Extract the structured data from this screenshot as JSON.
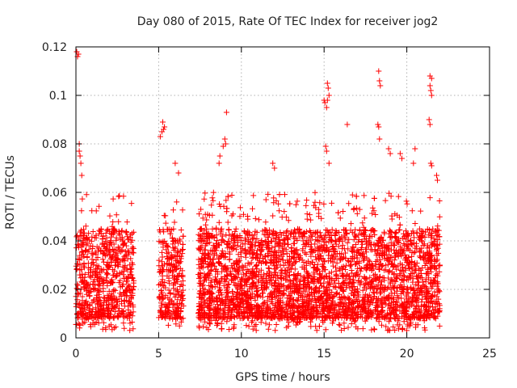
{
  "chart_data": {
    "type": "scatter",
    "title": "Day 080 of 2015, Rate Of TEC Index for receiver jog2",
    "xlabel": "GPS time / hours",
    "ylabel": "ROTI / TECUs",
    "xlim": [
      0,
      25
    ],
    "ylim": [
      0,
      0.12
    ],
    "xticks": [
      0,
      5,
      10,
      15,
      20,
      25
    ],
    "yticks": [
      0,
      0.02,
      0.04,
      0.06,
      0.08,
      0.1,
      0.12
    ],
    "xtick_labels": [
      "0",
      "5",
      "10",
      "15",
      "20",
      "25"
    ],
    "ytick_labels": [
      "0",
      "0.02",
      "0.04",
      "0.06",
      "0.08",
      "0.1",
      "0.12"
    ],
    "grid": true,
    "marker": "+",
    "color": "#ff0000",
    "series": [
      {
        "name": "ROTI",
        "segments": [
          {
            "x_start": 0.0,
            "x_end": 3.5,
            "base_low": 0.008,
            "base_high": 0.045,
            "peak": 0.06,
            "density": 700
          },
          {
            "x_start": 5.0,
            "x_end": 6.5,
            "base_low": 0.008,
            "base_high": 0.045,
            "peak": 0.06,
            "density": 280
          },
          {
            "x_start": 7.4,
            "x_end": 22.0,
            "base_low": 0.008,
            "base_high": 0.045,
            "peak": 0.06,
            "density": 3400
          }
        ],
        "spikes": [
          {
            "x": 0.05,
            "y": 0.118
          },
          {
            "x": 0.1,
            "y": 0.116
          },
          {
            "x": 0.15,
            "y": 0.117
          },
          {
            "x": 0.2,
            "y": 0.08
          },
          {
            "x": 0.25,
            "y": 0.075
          },
          {
            "x": 0.3,
            "y": 0.072
          },
          {
            "x": 0.35,
            "y": 0.067
          },
          {
            "x": 0.2,
            "y": 0.077
          },
          {
            "x": 5.25,
            "y": 0.089
          },
          {
            "x": 5.3,
            "y": 0.086
          },
          {
            "x": 5.2,
            "y": 0.085
          },
          {
            "x": 5.1,
            "y": 0.083
          },
          {
            "x": 5.35,
            "y": 0.087
          },
          {
            "x": 6.0,
            "y": 0.072
          },
          {
            "x": 6.2,
            "y": 0.068
          },
          {
            "x": 9.1,
            "y": 0.093
          },
          {
            "x": 9.0,
            "y": 0.082
          },
          {
            "x": 9.05,
            "y": 0.08
          },
          {
            "x": 8.9,
            "y": 0.079
          },
          {
            "x": 8.7,
            "y": 0.075
          },
          {
            "x": 8.65,
            "y": 0.072
          },
          {
            "x": 11.9,
            "y": 0.072
          },
          {
            "x": 12.0,
            "y": 0.07
          },
          {
            "x": 15.0,
            "y": 0.098
          },
          {
            "x": 15.05,
            "y": 0.097
          },
          {
            "x": 15.2,
            "y": 0.105
          },
          {
            "x": 15.25,
            "y": 0.103
          },
          {
            "x": 15.3,
            "y": 0.1
          },
          {
            "x": 15.15,
            "y": 0.095
          },
          {
            "x": 15.2,
            "y": 0.098
          },
          {
            "x": 15.1,
            "y": 0.079
          },
          {
            "x": 15.15,
            "y": 0.077
          },
          {
            "x": 15.3,
            "y": 0.072
          },
          {
            "x": 16.4,
            "y": 0.088
          },
          {
            "x": 18.3,
            "y": 0.11
          },
          {
            "x": 18.35,
            "y": 0.106
          },
          {
            "x": 18.4,
            "y": 0.104
          },
          {
            "x": 18.25,
            "y": 0.088
          },
          {
            "x": 18.3,
            "y": 0.087
          },
          {
            "x": 18.35,
            "y": 0.082
          },
          {
            "x": 18.9,
            "y": 0.078
          },
          {
            "x": 19.0,
            "y": 0.076
          },
          {
            "x": 19.6,
            "y": 0.076
          },
          {
            "x": 19.7,
            "y": 0.074
          },
          {
            "x": 20.5,
            "y": 0.078
          },
          {
            "x": 20.4,
            "y": 0.072
          },
          {
            "x": 21.4,
            "y": 0.108
          },
          {
            "x": 21.5,
            "y": 0.107
          },
          {
            "x": 21.4,
            "y": 0.104
          },
          {
            "x": 21.45,
            "y": 0.102
          },
          {
            "x": 21.5,
            "y": 0.1
          },
          {
            "x": 21.35,
            "y": 0.09
          },
          {
            "x": 21.4,
            "y": 0.088
          },
          {
            "x": 21.45,
            "y": 0.072
          },
          {
            "x": 21.5,
            "y": 0.071
          },
          {
            "x": 21.8,
            "y": 0.067
          },
          {
            "x": 21.85,
            "y": 0.065
          }
        ]
      }
    ]
  }
}
